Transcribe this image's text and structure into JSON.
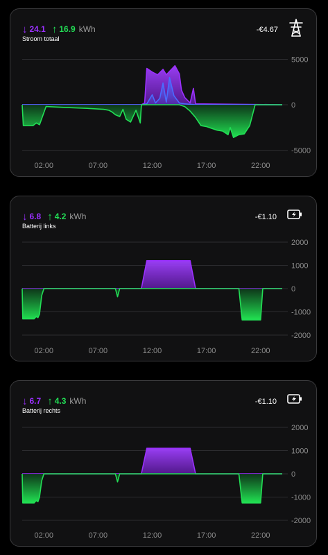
{
  "colors": {
    "import": "#9b30ff",
    "export": "#22dd55",
    "background": "#000000",
    "card": "#111112"
  },
  "cards": [
    {
      "import_value": "24.1",
      "export_value": "16.9",
      "unit": "kWh",
      "title": "Stroom totaal",
      "cost": "-€4.67",
      "icon": "power-pylon-icon",
      "y_ticks": [
        "5000",
        "0",
        "-5000"
      ],
      "x_ticks": [
        "02:00",
        "07:00",
        "12:00",
        "17:00",
        "22:00"
      ]
    },
    {
      "import_value": "6.8",
      "export_value": "4.2",
      "unit": "kWh",
      "title": "Batterij links",
      "cost": "-€1.10",
      "icon": "battery-charging-icon",
      "y_ticks": [
        "2000",
        "1000",
        "0",
        "-1000",
        "-2000"
      ],
      "x_ticks": [
        "02:00",
        "07:00",
        "12:00",
        "17:00",
        "22:00"
      ]
    },
    {
      "import_value": "6.7",
      "export_value": "4.3",
      "unit": "kWh",
      "title": "Batterij rechts",
      "cost": "-€1.10",
      "icon": "battery-charging-icon",
      "y_ticks": [
        "2000",
        "1000",
        "0",
        "-1000",
        "-2000"
      ],
      "x_ticks": [
        "02:00",
        "07:00",
        "12:00",
        "17:00",
        "22:00"
      ]
    }
  ],
  "chart_data": [
    {
      "type": "area",
      "title": "Stroom totaal",
      "xlabel": "",
      "ylabel": "",
      "x_ticks": [
        "02:00",
        "07:00",
        "12:00",
        "17:00",
        "22:00"
      ],
      "ylim": [
        -5500,
        5500
      ],
      "y_ticks": [
        5000,
        0,
        -5000
      ],
      "grid": true,
      "series": [
        {
          "color": "#9b30ff",
          "x": [
            0.0,
            11.0,
            11.3,
            11.5,
            12.0,
            12.5,
            13.0,
            13.3,
            13.7,
            14.1,
            14.5,
            14.7,
            15.0,
            15.5,
            15.8,
            16.0,
            24.0
          ],
          "values": [
            0,
            0,
            200,
            4000,
            3600,
            3300,
            3900,
            3300,
            3800,
            4300,
            3400,
            1600,
            800,
            200,
            1800,
            100,
            0
          ]
        },
        {
          "color": "#4a6cff",
          "x": [
            0.0,
            11.0,
            11.5,
            12.0,
            12.3,
            12.7,
            13.0,
            13.3,
            13.6,
            14.0,
            14.5,
            15.0,
            16.0,
            24.0
          ],
          "values": [
            0,
            0,
            100,
            1100,
            200,
            700,
            2400,
            300,
            3000,
            1000,
            200,
            100,
            0,
            0
          ]
        },
        {
          "color": "#22dd55",
          "x": [
            0.0,
            0.1,
            1.0,
            1.3,
            1.6,
            2.2,
            4.0,
            6.0,
            7.5,
            8.0,
            8.3,
            8.6,
            9.0,
            9.3,
            9.6,
            10.0,
            10.5,
            10.9,
            11.0,
            14.5,
            15.0,
            15.5,
            16.0,
            16.5,
            17.0,
            17.5,
            18.0,
            18.5,
            19.0,
            19.2,
            19.5,
            20.0,
            20.5,
            21.0,
            21.5,
            24.0
          ],
          "values": [
            0,
            -2300,
            -2300,
            -2000,
            -2200,
            -200,
            -300,
            -400,
            -500,
            -600,
            -800,
            -1100,
            -1300,
            -500,
            -1600,
            -1900,
            -600,
            -2000,
            0,
            0,
            -200,
            -700,
            -1400,
            -2300,
            -2400,
            -2600,
            -2800,
            -2900,
            -3300,
            -2500,
            -3600,
            -3300,
            -3200,
            -2300,
            0,
            0
          ]
        }
      ]
    },
    {
      "type": "area",
      "title": "Batterij links",
      "xlabel": "",
      "ylabel": "",
      "x_ticks": [
        "02:00",
        "07:00",
        "12:00",
        "17:00",
        "22:00"
      ],
      "ylim": [
        -2200,
        2200
      ],
      "y_ticks": [
        2000,
        1000,
        0,
        -1000,
        -2000
      ],
      "grid": true,
      "series": [
        {
          "color": "#9b30ff",
          "x": [
            0.0,
            11.0,
            11.5,
            15.5,
            16.0,
            24.0
          ],
          "values": [
            0,
            0,
            1200,
            1200,
            0,
            0
          ]
        },
        {
          "color": "#22dd55",
          "x": [
            0.0,
            0.05,
            1.1,
            1.3,
            1.45,
            1.6,
            1.8,
            2.0,
            8.6,
            8.8,
            9.0,
            10.8,
            11.0,
            16.1,
            16.3,
            20.0,
            20.3,
            22.0,
            22.2,
            24.0
          ],
          "values": [
            0,
            -1300,
            -1300,
            -1200,
            -1250,
            -1100,
            -300,
            0,
            0,
            -350,
            0,
            0,
            0,
            0,
            0,
            0,
            -1350,
            -1350,
            0,
            0
          ]
        }
      ]
    },
    {
      "type": "area",
      "title": "Batterij rechts",
      "xlabel": "",
      "ylabel": "",
      "x_ticks": [
        "02:00",
        "07:00",
        "12:00",
        "17:00",
        "22:00"
      ],
      "ylim": [
        -2200,
        2200
      ],
      "y_ticks": [
        2000,
        1000,
        0,
        -1000,
        -2000
      ],
      "grid": true,
      "series": [
        {
          "color": "#9b30ff",
          "x": [
            0.0,
            11.0,
            11.5,
            15.5,
            16.0,
            24.0
          ],
          "values": [
            0,
            0,
            1100,
            1100,
            0,
            0
          ]
        },
        {
          "color": "#22dd55",
          "x": [
            0.0,
            0.05,
            1.1,
            1.3,
            1.45,
            1.6,
            1.8,
            2.0,
            8.6,
            8.8,
            9.0,
            10.8,
            11.0,
            16.1,
            16.3,
            20.0,
            20.3,
            22.0,
            22.2,
            24.0
          ],
          "values": [
            0,
            -1250,
            -1250,
            -1150,
            -1200,
            -1000,
            -300,
            0,
            0,
            -350,
            0,
            0,
            0,
            0,
            0,
            0,
            -1250,
            -1250,
            0,
            0
          ]
        }
      ]
    }
  ]
}
